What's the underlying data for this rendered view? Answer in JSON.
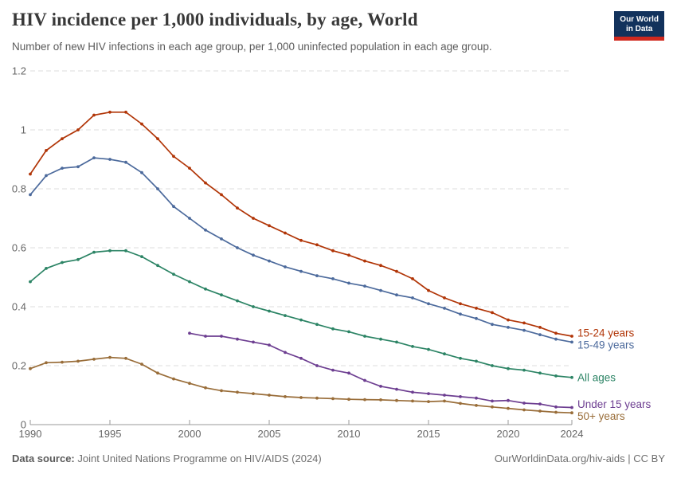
{
  "brand": {
    "line1": "Our World",
    "line2": "in Data",
    "navy": "#12325c",
    "red": "#d0291f"
  },
  "chart_data": {
    "type": "line",
    "title": "HIV incidence per 1,000 individuals, by age, World",
    "subtitle": "Number of new HIV infections in each age group, per 1,000 uninfected population in each age group.",
    "xlabel": "",
    "ylabel": "",
    "x_range": [
      1990,
      2024
    ],
    "y_range": [
      0,
      1.2
    ],
    "x_ticks": [
      1990,
      1995,
      2000,
      2005,
      2010,
      2015,
      2020,
      2024
    ],
    "y_ticks": [
      0,
      0.2,
      0.4,
      0.6,
      0.8,
      1,
      1.2
    ],
    "y_tick_labels": [
      "0",
      "0.2",
      "0.4",
      "0.6",
      "0.8",
      "1",
      "1.2"
    ],
    "grid": "horizontal dashed gridlines",
    "legend_position": "labels at right end of each line",
    "series": [
      {
        "name": "15-24 years",
        "color": "#B13507",
        "start_year": 1990,
        "values": [
          0.85,
          0.93,
          0.97,
          1.0,
          1.05,
          1.06,
          1.06,
          1.02,
          0.97,
          0.91,
          0.87,
          0.82,
          0.78,
          0.735,
          0.7,
          0.675,
          0.65,
          0.625,
          0.61,
          0.59,
          0.575,
          0.555,
          0.54,
          0.52,
          0.495,
          0.455,
          0.43,
          0.41,
          0.395,
          0.38,
          0.355,
          0.345,
          0.33,
          0.31,
          0.3
        ]
      },
      {
        "name": "15-49 years",
        "color": "#4C6A9C",
        "start_year": 1990,
        "values": [
          0.78,
          0.845,
          0.87,
          0.875,
          0.905,
          0.9,
          0.89,
          0.855,
          0.8,
          0.74,
          0.7,
          0.66,
          0.63,
          0.6,
          0.575,
          0.555,
          0.535,
          0.52,
          0.505,
          0.495,
          0.48,
          0.47,
          0.455,
          0.44,
          0.43,
          0.41,
          0.395,
          0.375,
          0.36,
          0.34,
          0.33,
          0.32,
          0.305,
          0.29,
          0.28
        ]
      },
      {
        "name": "All ages",
        "color": "#2C8465",
        "start_year": 1990,
        "values": [
          0.485,
          0.53,
          0.55,
          0.56,
          0.585,
          0.59,
          0.59,
          0.57,
          0.54,
          0.51,
          0.485,
          0.46,
          0.44,
          0.42,
          0.4,
          0.385,
          0.37,
          0.355,
          0.34,
          0.325,
          0.315,
          0.3,
          0.29,
          0.28,
          0.265,
          0.255,
          0.24,
          0.225,
          0.215,
          0.2,
          0.19,
          0.185,
          0.175,
          0.165,
          0.16
        ]
      },
      {
        "name": "Under 15 years",
        "color": "#6D3E91",
        "start_year": 2000,
        "values": [
          0.31,
          0.3,
          0.3,
          0.29,
          0.28,
          0.27,
          0.245,
          0.225,
          0.2,
          0.185,
          0.175,
          0.15,
          0.13,
          0.12,
          0.11,
          0.105,
          0.1,
          0.095,
          0.09,
          0.08,
          0.082,
          0.073,
          0.07,
          0.06,
          0.058
        ]
      },
      {
        "name": "50+ years",
        "color": "#996D39",
        "start_year": 1990,
        "values": [
          0.19,
          0.21,
          0.212,
          0.215,
          0.222,
          0.228,
          0.225,
          0.205,
          0.175,
          0.155,
          0.14,
          0.125,
          0.115,
          0.11,
          0.105,
          0.1,
          0.095,
          0.092,
          0.09,
          0.088,
          0.086,
          0.085,
          0.084,
          0.082,
          0.08,
          0.078,
          0.08,
          0.072,
          0.065,
          0.06,
          0.055,
          0.05,
          0.046,
          0.042,
          0.04
        ]
      }
    ]
  },
  "footer": {
    "data_source_label": "Data source:",
    "data_source_value": "Joint United Nations Programme on HIV/AIDS (2024)",
    "attribution": "OurWorldinData.org/hiv-aids | CC BY"
  },
  "colors": {
    "grid": "#dcdcdc",
    "axis": "#9a9a9a",
    "tick_text": "#666666",
    "title_text": "#383838",
    "subtitle_text": "#5b5b5b",
    "footer_text": "#6e6e6e"
  }
}
